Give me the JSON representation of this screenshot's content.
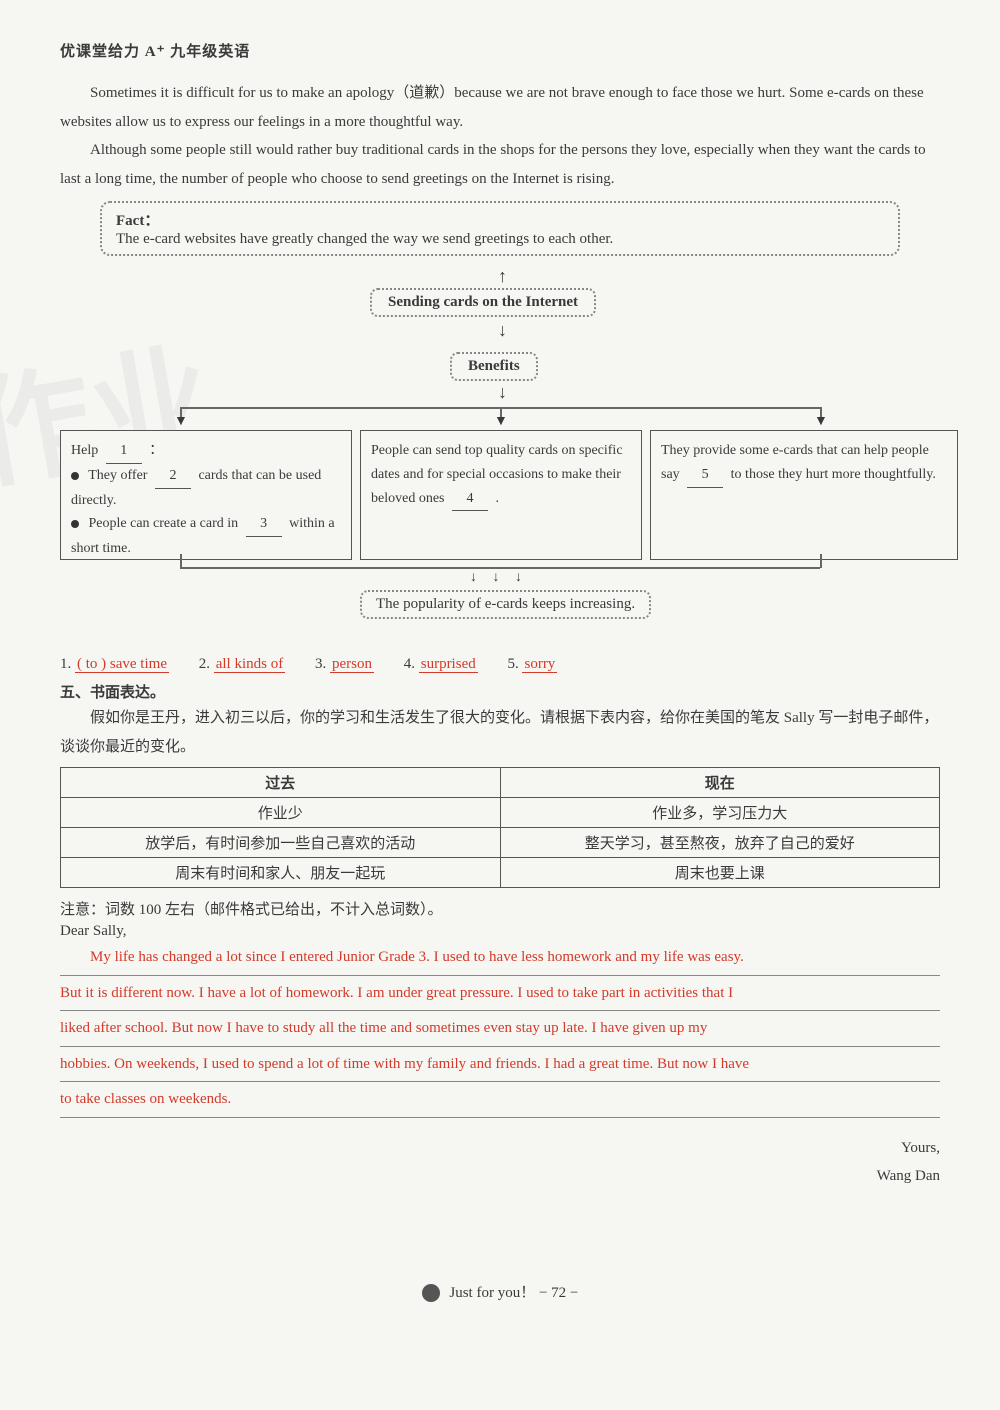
{
  "header": {
    "title": "优课堂给力 A⁺ 九年级英语"
  },
  "paragraphs": {
    "p1": "Sometimes it is difficult for us to make an apology（道歉）because we are not brave enough to face those we hurt. Some e-cards on these websites allow us to express our feelings in a more thoughtful way.",
    "p2": "Although some people still would rather buy traditional cards in the shops for the persons they love, especially when they want the cards to last a long time, the number of people who choose to send greetings on the Internet is rising."
  },
  "fact": {
    "label": "Fact：",
    "text": "The e-card websites have greatly changed the way we send greetings to each other."
  },
  "diagram": {
    "sending": "Sending cards on the Internet",
    "benefits": "Benefits",
    "box1": {
      "line_a": "Help",
      "blank1": "1",
      "line_a_end": "：",
      "bullet1_a": "They offer",
      "blank2": "2",
      "bullet1_b": "cards that can be used directly.",
      "bullet2_a": "People can create a card in",
      "blank3": "3",
      "bullet2_b": "within a short time."
    },
    "box2": {
      "text_a": "People can send top quality cards on specific dates and for special occasions to make their beloved ones",
      "blank4": "4",
      "text_b": "."
    },
    "box3": {
      "text_a": "They provide some e-cards that can help people say",
      "blank5": "5",
      "text_b": "to those they hurt more thoughtfully."
    },
    "popularity": "The popularity of e-cards keeps increasing."
  },
  "answers": {
    "a1_num": "1.",
    "a1": "( to ) save time",
    "a2_num": "2.",
    "a2": "all kinds of",
    "a3_num": "3.",
    "a3": "person",
    "a4_num": "4.",
    "a4": "surprised",
    "a5_num": "5.",
    "a5": "sorry"
  },
  "section5": {
    "head": "五、书面表达。",
    "intro": "假如你是王丹，进入初三以后，你的学习和生活发生了很大的变化。请根据下表内容，给你在美国的笔友 Sally 写一封电子邮件，谈谈你最近的变化。"
  },
  "table": {
    "head_past": "过去",
    "head_now": "现在",
    "rows": [
      {
        "past": "作业少",
        "now": "作业多，学习压力大"
      },
      {
        "past": "放学后，有时间参加一些自己喜欢的活动",
        "now": "整天学习，甚至熬夜，放弃了自己的爱好"
      },
      {
        "past": "周末有时间和家人、朋友一起玩",
        "now": "周末也要上课"
      }
    ]
  },
  "note": "注意：词数 100 左右（邮件格式已给出，不计入总词数）。",
  "letter": {
    "greet": "Dear Sally,",
    "l1": "My life has changed a lot since I entered Junior Grade 3. I used to have less homework and my life was easy.",
    "l2": "But it is different now. I have a lot of homework. I am under great pressure. I used to take part in activities that I",
    "l3": "liked after school. But now I have to study all the time and sometimes even stay up late. I have given up my",
    "l4": "hobbies. On weekends, I used to spend a lot of time with my family and friends. I had a great time. But now I have",
    "l5": "to take classes on weekends.",
    "yours": "Yours,",
    "name": "Wang Dan"
  },
  "footer": {
    "text": "Just for you！  − 72 −"
  },
  "colors": {
    "text": "#3a3a3a",
    "accent": "#d43a2a",
    "border": "#555555",
    "bg": "#f6f6f3"
  }
}
